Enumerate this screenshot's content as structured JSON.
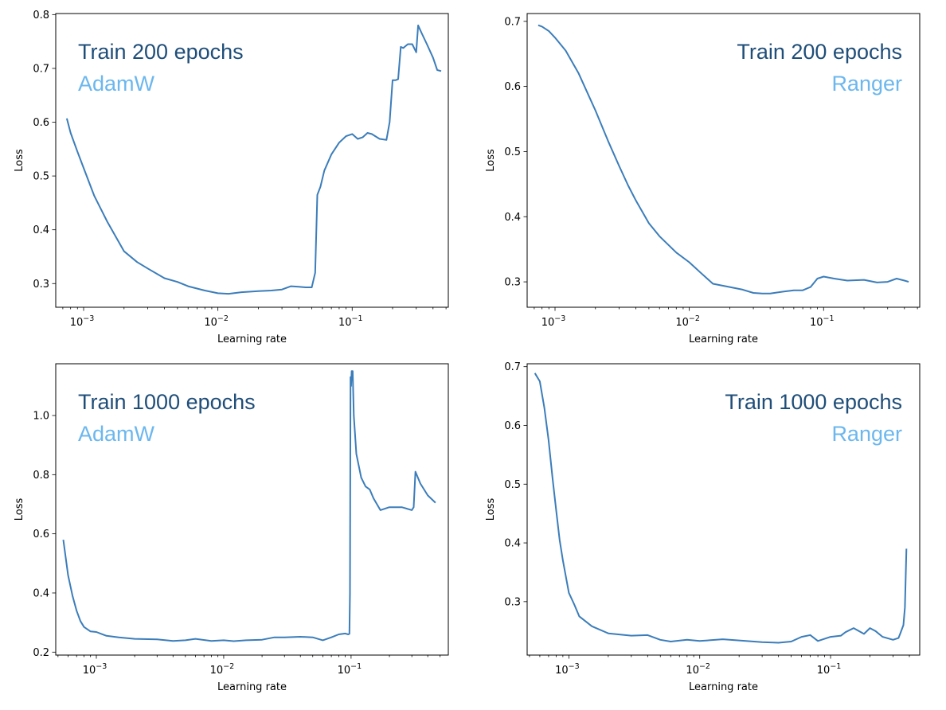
{
  "colors": {
    "line": "#3b7dba",
    "epochs_text": "#1f4e79",
    "optimizer_text": "#6bb7ee"
  },
  "chart_data": [
    {
      "type": "line",
      "xlabel": "Learning rate",
      "ylabel": "Loss",
      "xscale": "log",
      "xlim": [
        0.00062,
        0.52
      ],
      "ylim": [
        0.256,
        0.802
      ],
      "xticks": [
        "10^-3",
        "10^-2",
        "10^-1"
      ],
      "xtick_values": [
        0.001,
        0.01,
        0.1
      ],
      "yticks": [
        0.3,
        0.4,
        0.5,
        0.6,
        0.7,
        0.8
      ],
      "ytick_labels": [
        "0.3",
        "0.4",
        "0.5",
        "0.6",
        "0.7",
        "0.8"
      ],
      "annotations": [
        "Train 200 epochs",
        "AdamW"
      ],
      "annotation_align": "top-left",
      "series": [
        {
          "x": [
            0.00075,
            0.0008,
            0.0009,
            0.001,
            0.0012,
            0.0015,
            0.002,
            0.0025,
            0.003,
            0.004,
            0.005,
            0.006,
            0.008,
            0.01,
            0.012,
            0.015,
            0.02,
            0.025,
            0.03,
            0.035,
            0.04,
            0.045,
            0.05,
            0.053,
            0.055,
            0.058,
            0.062,
            0.07,
            0.08,
            0.09,
            0.1,
            0.11,
            0.12,
            0.13,
            0.14,
            0.16,
            0.18,
            0.19,
            0.2,
            0.21,
            0.22,
            0.23,
            0.24,
            0.26,
            0.28,
            0.3,
            0.31,
            0.33,
            0.36,
            0.4,
            0.43,
            0.46
          ],
          "y": [
            0.607,
            0.58,
            0.545,
            0.515,
            0.463,
            0.415,
            0.36,
            0.34,
            0.328,
            0.31,
            0.303,
            0.295,
            0.287,
            0.282,
            0.281,
            0.284,
            0.286,
            0.287,
            0.289,
            0.295,
            0.294,
            0.293,
            0.293,
            0.32,
            0.465,
            0.48,
            0.51,
            0.54,
            0.562,
            0.574,
            0.578,
            0.569,
            0.572,
            0.58,
            0.578,
            0.569,
            0.567,
            0.6,
            0.678,
            0.678,
            0.68,
            0.74,
            0.738,
            0.745,
            0.745,
            0.73,
            0.78,
            0.765,
            0.745,
            0.72,
            0.697,
            0.695
          ]
        }
      ]
    },
    {
      "type": "line",
      "xlabel": "Learning rate",
      "ylabel": "Loss",
      "xscale": "log",
      "xlim": [
        0.00062,
        0.52
      ],
      "ylim": [
        0.261,
        0.712
      ],
      "xticks": [
        "10^-3",
        "10^-2",
        "10^-1"
      ],
      "xtick_values": [
        0.001,
        0.01,
        0.1
      ],
      "yticks": [
        0.3,
        0.4,
        0.5,
        0.6,
        0.7
      ],
      "ytick_labels": [
        "0.3",
        "0.4",
        "0.5",
        "0.6",
        "0.7"
      ],
      "annotations": [
        "Train 200 epochs",
        "Ranger"
      ],
      "annotation_align": "top-right",
      "series": [
        {
          "x": [
            0.00075,
            0.0008,
            0.0009,
            0.001,
            0.0012,
            0.0015,
            0.002,
            0.0025,
            0.003,
            0.0035,
            0.004,
            0.005,
            0.006,
            0.008,
            0.01,
            0.012,
            0.015,
            0.02,
            0.025,
            0.03,
            0.035,
            0.04,
            0.05,
            0.06,
            0.07,
            0.08,
            0.09,
            0.1,
            0.12,
            0.15,
            0.2,
            0.25,
            0.3,
            0.35,
            0.4,
            0.43
          ],
          "y": [
            0.694,
            0.692,
            0.685,
            0.675,
            0.655,
            0.62,
            0.563,
            0.515,
            0.478,
            0.448,
            0.425,
            0.39,
            0.37,
            0.345,
            0.33,
            0.315,
            0.297,
            0.292,
            0.288,
            0.283,
            0.282,
            0.282,
            0.285,
            0.287,
            0.287,
            0.292,
            0.305,
            0.308,
            0.305,
            0.302,
            0.303,
            0.299,
            0.3,
            0.305,
            0.302,
            0.3
          ]
        }
      ]
    },
    {
      "type": "line",
      "xlabel": "Learning rate",
      "ylabel": "Loss",
      "xscale": "log",
      "xlim": [
        0.00048,
        0.58
      ],
      "ylim": [
        0.19,
        1.175
      ],
      "xticks": [
        "10^-3",
        "10^-2",
        "10^-1"
      ],
      "xtick_values": [
        0.001,
        0.01,
        0.1
      ],
      "yticks": [
        0.2,
        0.4,
        0.6,
        0.8,
        1.0
      ],
      "ytick_labels": [
        "0.2",
        "0.4",
        "0.6",
        "0.8",
        "1.0"
      ],
      "annotations": [
        "Train 1000 epochs",
        "AdamW"
      ],
      "annotation_align": "top-left",
      "series": [
        {
          "x": [
            0.00055,
            0.0006,
            0.00065,
            0.0007,
            0.00075,
            0.0008,
            0.0009,
            0.001,
            0.0012,
            0.0015,
            0.002,
            0.003,
            0.004,
            0.005,
            0.006,
            0.008,
            0.01,
            0.012,
            0.015,
            0.02,
            0.025,
            0.03,
            0.04,
            0.05,
            0.06,
            0.07,
            0.08,
            0.09,
            0.095,
            0.097,
            0.098,
            0.099,
            0.1,
            0.101,
            0.103,
            0.105,
            0.11,
            0.12,
            0.13,
            0.14,
            0.15,
            0.17,
            0.2,
            0.25,
            0.3,
            0.31,
            0.32,
            0.35,
            0.4,
            0.46
          ],
          "y": [
            0.58,
            0.46,
            0.39,
            0.34,
            0.305,
            0.285,
            0.27,
            0.268,
            0.255,
            0.25,
            0.245,
            0.243,
            0.238,
            0.24,
            0.245,
            0.238,
            0.24,
            0.237,
            0.24,
            0.242,
            0.25,
            0.25,
            0.252,
            0.25,
            0.24,
            0.25,
            0.26,
            0.263,
            0.26,
            0.262,
            0.4,
            1.13,
            1.1,
            1.15,
            1.15,
            1.0,
            0.87,
            0.79,
            0.76,
            0.75,
            0.72,
            0.68,
            0.69,
            0.69,
            0.68,
            0.69,
            0.81,
            0.77,
            0.73,
            0.705
          ]
        }
      ]
    },
    {
      "type": "line",
      "xlabel": "Learning rate",
      "ylabel": "Loss",
      "xscale": "log",
      "xlim": [
        0.00048,
        0.48
      ],
      "ylim": [
        0.209,
        0.705
      ],
      "xticks": [
        "10^-3",
        "10^-2",
        "10^-1"
      ],
      "xtick_values": [
        0.001,
        0.01,
        0.1
      ],
      "yticks": [
        0.3,
        0.4,
        0.5,
        0.6,
        0.7
      ],
      "ytick_labels": [
        "0.3",
        "0.4",
        "0.5",
        "0.6",
        "0.7"
      ],
      "annotations": [
        "Train 1000 epochs",
        "Ranger"
      ],
      "annotation_align": "top-right",
      "series": [
        {
          "x": [
            0.00055,
            0.0006,
            0.00065,
            0.0007,
            0.00075,
            0.0008,
            0.00085,
            0.0009,
            0.001,
            0.0011,
            0.0012,
            0.0015,
            0.002,
            0.003,
            0.004,
            0.005,
            0.006,
            0.008,
            0.01,
            0.015,
            0.02,
            0.03,
            0.04,
            0.05,
            0.06,
            0.07,
            0.08,
            0.1,
            0.12,
            0.13,
            0.15,
            0.18,
            0.2,
            0.22,
            0.25,
            0.3,
            0.33,
            0.34,
            0.36,
            0.37,
            0.38
          ],
          "y": [
            0.689,
            0.675,
            0.63,
            0.575,
            0.51,
            0.455,
            0.405,
            0.37,
            0.315,
            0.295,
            0.275,
            0.258,
            0.246,
            0.242,
            0.243,
            0.235,
            0.232,
            0.235,
            0.233,
            0.236,
            0.234,
            0.231,
            0.23,
            0.232,
            0.24,
            0.243,
            0.233,
            0.24,
            0.242,
            0.248,
            0.255,
            0.245,
            0.255,
            0.25,
            0.24,
            0.235,
            0.238,
            0.245,
            0.26,
            0.29,
            0.39
          ]
        }
      ]
    }
  ]
}
